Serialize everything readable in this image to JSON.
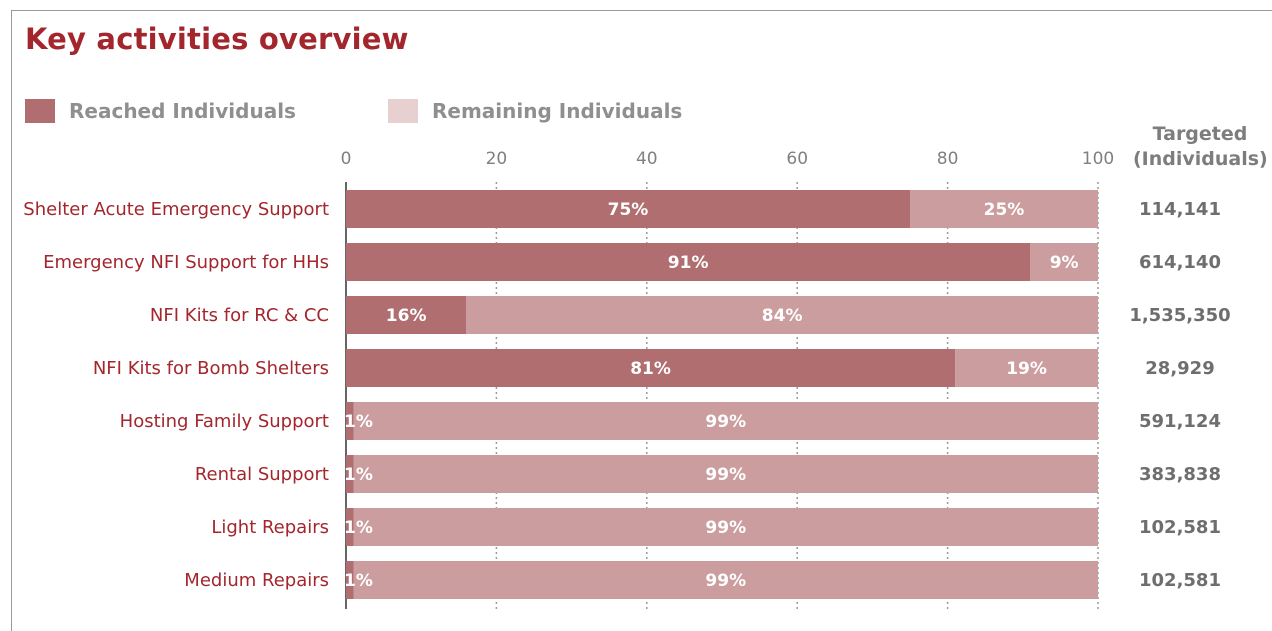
{
  "colors": {
    "title": "#a3262d",
    "reached": "#b06e70",
    "remaining": "#cc9d9f",
    "legend_reached": "#b06e70",
    "legend_remaining": "#e8cfd0",
    "category_text": "#a3262d",
    "axis_text": "#808080"
  },
  "chart_data": {
    "type": "bar",
    "orientation": "horizontal",
    "stacked": true,
    "title": "Key activities overview",
    "legend": [
      "Reached Individuals",
      "Remaining Individuals"
    ],
    "legend_position": "top-left",
    "xlim": [
      0,
      100
    ],
    "xticks": [
      0,
      20,
      40,
      60,
      80,
      100
    ],
    "categories": [
      "Shelter Acute Emergency Support",
      "Emergency NFI Support for HHs",
      "NFI Kits for RC & CC",
      "NFI Kits for Bomb Shelters",
      "Hosting Family Support",
      "Rental Support",
      "Light Repairs",
      "Medium Repairs"
    ],
    "series": [
      {
        "name": "Reached Individuals",
        "values": [
          75,
          91,
          16,
          81,
          1,
          1,
          1,
          1
        ],
        "labels": [
          "75%",
          "91%",
          "16%",
          "81%",
          "1%",
          "1%",
          "1%",
          "1%"
        ]
      },
      {
        "name": "Remaining Individuals",
        "values": [
          25,
          9,
          84,
          19,
          99,
          99,
          99,
          99
        ],
        "labels": [
          "25%",
          "9%",
          "84%",
          "19%",
          "99%",
          "99%",
          "99%",
          "99%"
        ]
      }
    ],
    "targeted_header": [
      "Targeted",
      "(Individuals)"
    ],
    "targeted": [
      "114,141",
      "614,140",
      "1,535,350",
      "28,929",
      "591,124",
      "383,838",
      "102,581",
      "102,581"
    ],
    "grid": "dashed-vertical"
  }
}
